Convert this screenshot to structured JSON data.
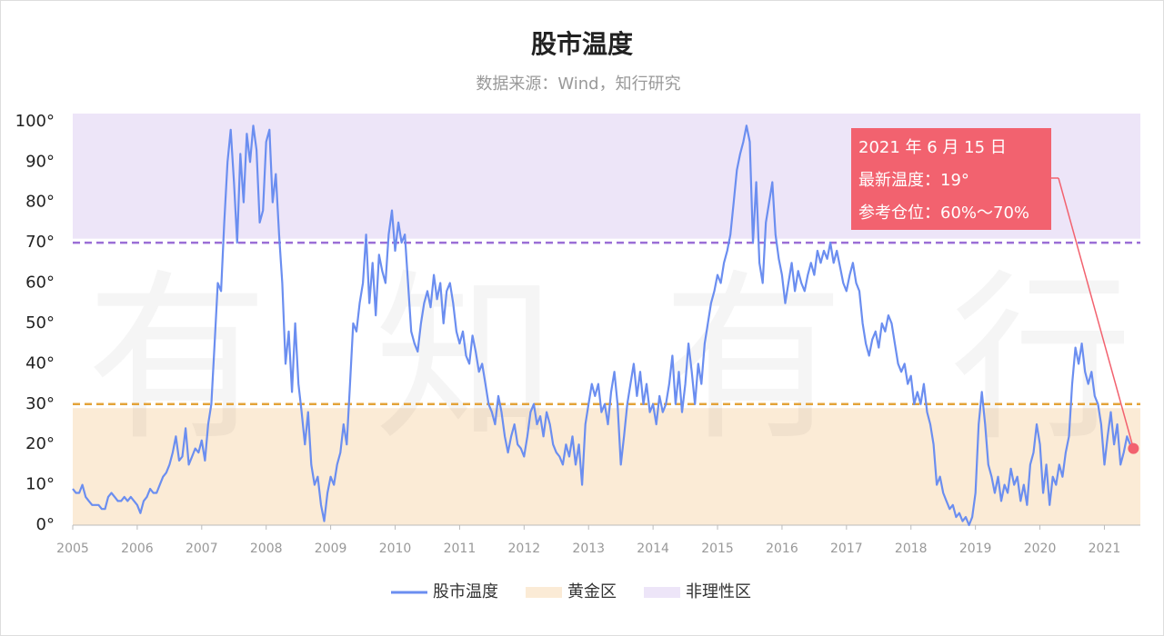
{
  "chart_data": {
    "type": "line",
    "title": "股市温度",
    "subtitle": "数据来源：Wind，知行研究",
    "watermark": "有知有行",
    "xlim": [
      2005,
      2021.6
    ],
    "xticks": [
      2005,
      2006,
      2007,
      2008,
      2009,
      2010,
      2011,
      2012,
      2013,
      2014,
      2015,
      2016,
      2017,
      2018,
      2019,
      2020,
      2021
    ],
    "ylim": [
      0,
      102
    ],
    "yticks": [
      {
        "value": 0,
        "label": "0°"
      },
      {
        "value": 10,
        "label": "10°"
      },
      {
        "value": 20,
        "label": "20°"
      },
      {
        "value": 30,
        "label": "30°"
      },
      {
        "value": 40,
        "label": "40°"
      },
      {
        "value": 50,
        "label": "50°"
      },
      {
        "value": 60,
        "label": "60°"
      },
      {
        "value": 70,
        "label": "70°"
      },
      {
        "value": 80,
        "label": "80°"
      },
      {
        "value": 90,
        "label": "90°"
      },
      {
        "value": 100,
        "label": "100°"
      }
    ],
    "zones": [
      {
        "name": "黄金区",
        "range": [
          0,
          29
        ],
        "color": "#fbebd6"
      },
      {
        "name": "非理性区",
        "range": [
          71,
          102
        ],
        "color": "#ede5f8"
      }
    ],
    "reference_lines": [
      {
        "value": 70,
        "color": "#9b6fd6"
      },
      {
        "value": 30,
        "color": "#e3a33a"
      }
    ],
    "annotation": {
      "lines": [
        "2021 年 6 月 15 日",
        "最新温度：19°",
        "参考仓位：60%～70%"
      ],
      "color": "#f2626f"
    },
    "legend": "bottom",
    "x": [
      2005,
      2005.05,
      2005.1,
      2005.15,
      2005.2,
      2005.25,
      2005.3,
      2005.35,
      2005.4,
      2005.45,
      2005.5,
      2005.55,
      2005.6,
      2005.65,
      2005.7,
      2005.75,
      2005.8,
      2005.85,
      2005.9,
      2005.95,
      2006,
      2006.05,
      2006.1,
      2006.15,
      2006.2,
      2006.25,
      2006.3,
      2006.35,
      2006.4,
      2006.45,
      2006.5,
      2006.55,
      2006.6,
      2006.65,
      2006.7,
      2006.75,
      2006.8,
      2006.85,
      2006.9,
      2006.95,
      2007,
      2007.05,
      2007.1,
      2007.15,
      2007.2,
      2007.25,
      2007.3,
      2007.35,
      2007.4,
      2007.45,
      2007.5,
      2007.55,
      2007.6,
      2007.65,
      2007.7,
      2007.75,
      2007.8,
      2007.85,
      2007.9,
      2007.95,
      2008,
      2008.05,
      2008.1,
      2008.15,
      2008.2,
      2008.25,
      2008.3,
      2008.35,
      2008.4,
      2008.45,
      2008.5,
      2008.55,
      2008.6,
      2008.65,
      2008.7,
      2008.75,
      2008.8,
      2008.85,
      2008.9,
      2008.95,
      2009,
      2009.05,
      2009.1,
      2009.15,
      2009.2,
      2009.25,
      2009.3,
      2009.35,
      2009.4,
      2009.45,
      2009.5,
      2009.55,
      2009.6,
      2009.65,
      2009.7,
      2009.75,
      2009.8,
      2009.85,
      2009.9,
      2009.95,
      2010,
      2010.05,
      2010.1,
      2010.15,
      2010.2,
      2010.25,
      2010.3,
      2010.35,
      2010.4,
      2010.45,
      2010.5,
      2010.55,
      2010.6,
      2010.65,
      2010.7,
      2010.75,
      2010.8,
      2010.85,
      2010.9,
      2010.95,
      2011,
      2011.05,
      2011.1,
      2011.15,
      2011.2,
      2011.25,
      2011.3,
      2011.35,
      2011.4,
      2011.45,
      2011.5,
      2011.55,
      2011.6,
      2011.65,
      2011.7,
      2011.75,
      2011.8,
      2011.85,
      2011.9,
      2011.95,
      2012,
      2012.05,
      2012.1,
      2012.15,
      2012.2,
      2012.25,
      2012.3,
      2012.35,
      2012.4,
      2012.45,
      2012.5,
      2012.55,
      2012.6,
      2012.65,
      2012.7,
      2012.75,
      2012.8,
      2012.85,
      2012.9,
      2012.95,
      2013,
      2013.05,
      2013.1,
      2013.15,
      2013.2,
      2013.25,
      2013.3,
      2013.35,
      2013.4,
      2013.45,
      2013.5,
      2013.55,
      2013.6,
      2013.65,
      2013.7,
      2013.75,
      2013.8,
      2013.85,
      2013.9,
      2013.95,
      2014,
      2014.05,
      2014.1,
      2014.15,
      2014.2,
      2014.25,
      2014.3,
      2014.35,
      2014.4,
      2014.45,
      2014.5,
      2014.55,
      2014.6,
      2014.65,
      2014.7,
      2014.75,
      2014.8,
      2014.85,
      2014.9,
      2014.95,
      2015,
      2015.05,
      2015.1,
      2015.15,
      2015.2,
      2015.25,
      2015.3,
      2015.35,
      2015.4,
      2015.45,
      2015.5,
      2015.55,
      2015.6,
      2015.65,
      2015.7,
      2015.75,
      2015.8,
      2015.85,
      2015.9,
      2015.95,
      2016,
      2016.05,
      2016.1,
      2016.15,
      2016.2,
      2016.25,
      2016.3,
      2016.35,
      2016.4,
      2016.45,
      2016.5,
      2016.55,
      2016.6,
      2016.65,
      2016.7,
      2016.75,
      2016.8,
      2016.85,
      2016.9,
      2016.95,
      2017,
      2017.05,
      2017.1,
      2017.15,
      2017.2,
      2017.25,
      2017.3,
      2017.35,
      2017.4,
      2017.45,
      2017.5,
      2017.55,
      2017.6,
      2017.65,
      2017.7,
      2017.75,
      2017.8,
      2017.85,
      2017.9,
      2017.95,
      2018,
      2018.05,
      2018.1,
      2018.15,
      2018.2,
      2018.25,
      2018.3,
      2018.35,
      2018.4,
      2018.45,
      2018.5,
      2018.55,
      2018.6,
      2018.65,
      2018.7,
      2018.75,
      2018.8,
      2018.85,
      2018.9,
      2018.95,
      2019,
      2019.05,
      2019.1,
      2019.15,
      2019.2,
      2019.25,
      2019.3,
      2019.35,
      2019.4,
      2019.45,
      2019.5,
      2019.55,
      2019.6,
      2019.65,
      2019.7,
      2019.75,
      2019.8,
      2019.85,
      2019.9,
      2019.95,
      2020,
      2020.05,
      2020.1,
      2020.15,
      2020.2,
      2020.25,
      2020.3,
      2020.35,
      2020.4,
      2020.45,
      2020.5,
      2020.55,
      2020.6,
      2020.65,
      2020.7,
      2020.75,
      2020.8,
      2020.85,
      2020.9,
      2020.95,
      2021,
      2021.05,
      2021.1,
      2021.15,
      2021.2,
      2021.25,
      2021.3,
      2021.35,
      2021.4,
      2021.45
    ],
    "series": [
      {
        "name": "股市温度",
        "color": "#6b8ef0",
        "values": [
          9,
          8,
          8,
          10,
          7,
          6,
          5,
          5,
          5,
          4,
          4,
          7,
          8,
          7,
          6,
          6,
          7,
          6,
          7,
          6,
          5,
          3,
          6,
          7,
          9,
          8,
          8,
          10,
          12,
          13,
          15,
          18,
          22,
          16,
          17,
          24,
          15,
          17,
          19,
          18,
          21,
          16,
          25,
          30,
          45,
          60,
          58,
          75,
          90,
          98,
          85,
          70,
          92,
          80,
          97,
          90,
          99,
          93,
          75,
          78,
          95,
          98,
          80,
          87,
          72,
          60,
          40,
          48,
          33,
          50,
          35,
          28,
          20,
          28,
          15,
          10,
          12,
          5,
          1,
          8,
          12,
          10,
          15,
          18,
          25,
          20,
          35,
          50,
          48,
          55,
          60,
          72,
          55,
          65,
          52,
          67,
          63,
          60,
          72,
          78,
          68,
          75,
          70,
          72,
          60,
          48,
          45,
          43,
          50,
          55,
          58,
          54,
          62,
          56,
          60,
          50,
          58,
          60,
          55,
          48,
          45,
          48,
          42,
          40,
          47,
          43,
          38,
          40,
          35,
          30,
          28,
          25,
          32,
          28,
          22,
          18,
          22,
          25,
          20,
          19,
          17,
          22,
          28,
          30,
          25,
          27,
          22,
          28,
          25,
          20,
          18,
          17,
          15,
          20,
          17,
          22,
          15,
          20,
          10,
          25,
          30,
          35,
          32,
          35,
          28,
          30,
          25,
          33,
          38,
          30,
          15,
          22,
          30,
          35,
          40,
          32,
          38,
          30,
          35,
          28,
          30,
          25,
          32,
          28,
          30,
          35,
          42,
          30,
          38,
          28,
          35,
          45,
          38,
          30,
          40,
          35,
          45,
          50,
          55,
          58,
          62,
          60,
          65,
          68,
          72,
          80,
          88,
          92,
          95,
          99,
          95,
          70,
          85,
          65,
          60,
          75,
          80,
          85,
          72,
          66,
          62,
          55,
          60,
          65,
          58,
          63,
          60,
          58,
          62,
          65,
          62,
          68,
          65,
          68,
          66,
          70,
          65,
          68,
          64,
          60,
          58,
          62,
          65,
          60,
          58,
          50,
          45,
          42,
          46,
          48,
          44,
          50,
          48,
          52,
          50,
          45,
          40,
          38,
          40,
          35,
          37,
          30,
          33,
          30,
          35,
          28,
          25,
          20,
          10,
          12,
          8,
          6,
          4,
          5,
          2,
          3,
          1,
          2,
          0,
          2,
          8,
          25,
          33,
          25,
          15,
          12,
          8,
          12,
          6,
          10,
          8,
          14,
          10,
          12,
          6,
          10,
          5,
          15,
          18,
          25,
          20,
          8,
          15,
          5,
          12,
          10,
          15,
          12,
          18,
          22,
          35,
          44,
          40,
          45,
          38,
          35,
          38,
          32,
          30,
          25,
          15,
          22,
          28,
          20,
          25,
          15,
          18,
          22,
          20,
          19
        ]
      }
    ]
  }
}
